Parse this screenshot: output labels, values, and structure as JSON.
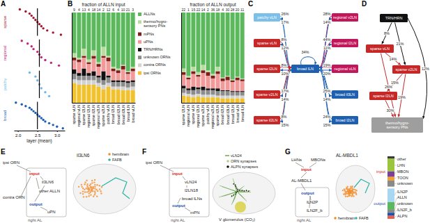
{
  "panel_labels": [
    "A",
    "B",
    "C",
    "D",
    "E",
    "F",
    "G"
  ],
  "chart_data": [
    {
      "type": "strip",
      "x_label": "layer (mean)",
      "xlim": [
        1.9,
        3.2
      ],
      "xticks": [
        {
          "value": 2,
          "label": "2.0"
        },
        {
          "value": 2.5,
          "label": "2.5"
        },
        {
          "value": 3,
          "label": "3.0"
        }
      ],
      "series": [
        {
          "name": "sparse",
          "color": "#a3162b",
          "values": [
            2.05,
            2.2,
            2.3,
            2.35,
            2.4,
            2.45,
            2.5,
            2.55,
            2.6,
            2.65,
            2.75,
            2.9,
            3.1
          ],
          "mean": 2.5
        },
        {
          "name": "regional",
          "color": "#c2267a",
          "values": [
            2.1,
            2.25,
            2.35,
            2.4,
            2.5,
            2.55,
            2.6,
            2.7,
            2.85,
            3.05
          ],
          "mean": 2.55
        },
        {
          "name": "patchy",
          "color": "#6fb7e8",
          "values": [
            2.3,
            2.45,
            2.5,
            2.55,
            2.6,
            2.7,
            2.8
          ],
          "mean": 2.55
        },
        {
          "name": "broad",
          "color": "#1f5fb0",
          "values": [
            1.95,
            2.1,
            2.2,
            2.3,
            2.35,
            2.4,
            2.45,
            2.5,
            2.55,
            2.6,
            2.65,
            2.7,
            2.8,
            2.9,
            3,
            3.15
          ],
          "mean": 2.5
        }
      ]
    },
    {
      "type": "bar",
      "stacked": true,
      "title": "fraction of ALLN input",
      "ylim": [
        0,
        1
      ],
      "tick_labels": "x",
      "legend": "right",
      "categories": [
        "sparse vLN",
        "regional vLN",
        "sparse l2LN",
        "regional l2LN",
        "sparse il2LN",
        "regional v2LN",
        "sparse v2LN",
        "patchy vLN",
        "broad l2LN",
        "broad il2LN",
        "broad il3LN",
        "broad lLN",
        "broad vLN"
      ],
      "counts": [
        9,
        4,
        13,
        4,
        18,
        14,
        2,
        12,
        6,
        4,
        10,
        21,
        3
      ],
      "series": [
        {
          "name": "ALLNs",
          "color": "#5cb85c",
          "values": [
            0.45,
            0.5,
            0.4,
            0.52,
            0.42,
            0.55,
            0.38,
            0.48,
            0.6,
            0.62,
            0.58,
            0.65,
            0.6
          ]
        },
        {
          "name": "thermo/hygro-sensory PNs",
          "color": "#b9dca0",
          "values": [
            0.05,
            0.02,
            0.08,
            0.03,
            0.06,
            0.02,
            0.1,
            0.02,
            0.02,
            0.02,
            0.01,
            0.01,
            0.02
          ]
        },
        {
          "name": "mPNs",
          "color": "#7f1d1d",
          "values": [
            0.03,
            0.03,
            0.02,
            0.02,
            0.03,
            0.03,
            0.02,
            0.04,
            0.03,
            0.03,
            0.04,
            0.02,
            0.03
          ]
        },
        {
          "name": "uPNs",
          "color": "#f29a9a",
          "values": [
            0.1,
            0.12,
            0.12,
            0.1,
            0.14,
            0.1,
            0.15,
            0.16,
            0.1,
            0.08,
            0.12,
            0.08,
            0.1
          ]
        },
        {
          "name": "TRN/HRNs",
          "color": "#111111",
          "values": [
            0.05,
            0.03,
            0.08,
            0.03,
            0.05,
            0.02,
            0.1,
            0.02,
            0.02,
            0.02,
            0.02,
            0.02,
            0.02
          ]
        },
        {
          "name": "unknown ORNs",
          "color": "#8c8c8c",
          "values": [
            0.06,
            0.05,
            0.05,
            0.05,
            0.05,
            0.06,
            0.05,
            0.06,
            0.05,
            0.05,
            0.05,
            0.05,
            0.05
          ]
        },
        {
          "name": "contra ORNs",
          "color": "#d2d2d2",
          "values": [
            0.04,
            0.05,
            0.05,
            0.05,
            0.05,
            0.04,
            0.05,
            0.04,
            0.03,
            0.03,
            0.04,
            0.03,
            0.04
          ]
        },
        {
          "name": "ipsi ORNs",
          "color": "#f2c12e",
          "values": [
            0.22,
            0.2,
            0.2,
            0.2,
            0.2,
            0.18,
            0.15,
            0.18,
            0.15,
            0.15,
            0.14,
            0.14,
            0.14
          ]
        }
      ]
    },
    {
      "type": "bar",
      "stacked": true,
      "title": "fraction of ALLN output",
      "ylim": [
        0,
        1
      ],
      "tick_labels": "x",
      "categories": [
        "sparse l2LN",
        "regional vLN",
        "sparse vLN",
        "regional l2LN",
        "sparse v2LN",
        "patchy vLN",
        "regional v2LN",
        "sparse il2LN",
        "broad il2LN",
        "broad il3LN",
        "broad l2LN",
        "broad vLN",
        "broad lLN"
      ],
      "counts": [
        22,
        1,
        15,
        22,
        14,
        2,
        36,
        18,
        4,
        30,
        28,
        20,
        11
      ],
      "series": [
        {
          "color": "#5cb85c",
          "values": [
            0.62,
            0.7,
            0.6,
            0.66,
            0.58,
            0.64,
            0.68,
            0.6,
            0.72,
            0.7,
            0.74,
            0.71,
            0.73
          ]
        },
        {
          "color": "#b9dca0",
          "values": [
            0.04,
            0.02,
            0.05,
            0.03,
            0.06,
            0.02,
            0.02,
            0.05,
            0.01,
            0.01,
            0.01,
            0.01,
            0.01
          ]
        },
        {
          "color": "#7f1d1d",
          "values": [
            0.03,
            0.02,
            0.03,
            0.02,
            0.03,
            0.04,
            0.03,
            0.03,
            0.03,
            0.04,
            0.02,
            0.03,
            0.02
          ]
        },
        {
          "color": "#f29a9a",
          "values": [
            0.12,
            0.1,
            0.14,
            0.12,
            0.15,
            0.14,
            0.11,
            0.16,
            0.1,
            0.11,
            0.1,
            0.12,
            0.11
          ]
        },
        {
          "color": "#111111",
          "values": [
            0.03,
            0.02,
            0.04,
            0.02,
            0.04,
            0.02,
            0.02,
            0.03,
            0.01,
            0.01,
            0.01,
            0.01,
            0.01
          ]
        },
        {
          "color": "#8c8c8c",
          "values": [
            0.05,
            0.04,
            0.05,
            0.05,
            0.05,
            0.05,
            0.05,
            0.05,
            0.05,
            0.05,
            0.04,
            0.04,
            0.04
          ]
        },
        {
          "color": "#d2d2d2",
          "values": [
            0.03,
            0.03,
            0.03,
            0.03,
            0.03,
            0.03,
            0.03,
            0.02,
            0.03,
            0.03,
            0.03,
            0.03,
            0.03
          ]
        },
        {
          "color": "#f2c12e",
          "values": [
            0.08,
            0.07,
            0.06,
            0.07,
            0.06,
            0.06,
            0.06,
            0.06,
            0.05,
            0.05,
            0.05,
            0.05,
            0.05
          ]
        }
      ]
    },
    {
      "type": "bar",
      "stacked": true,
      "ylim": [
        0,
        1
      ],
      "legend": "right",
      "categories": [
        "input",
        "output"
      ],
      "series": [
        {
          "name": "other",
          "color": "#3a3a3a",
          "values": [
            0.08,
            null
          ]
        },
        {
          "name": "LHN",
          "color": "#9bc53d",
          "values": [
            0.42,
            null
          ]
        },
        {
          "name": "MBON",
          "color": "#7e3f98",
          "values": [
            0.18,
            null
          ]
        },
        {
          "name": "TOON",
          "color": "#f0a030",
          "values": [
            0.12,
            null
          ]
        },
        {
          "name": "unknown",
          "color": "#8a8a8a",
          "values": [
            0.2,
            null
          ]
        },
        {
          "name": "lLN2P",
          "color": "#a9d6f0",
          "values": [
            null,
            0.45
          ]
        },
        {
          "name": "ALLN",
          "color": "#5cb85c",
          "values": [
            null,
            0.25
          ]
        },
        {
          "name": "unknown",
          "color": "#8a8a8a",
          "values": [
            null,
            0.1
          ]
        },
        {
          "name": "lLN2F_b",
          "color": "#1f4fa8",
          "values": [
            null,
            0.1
          ]
        },
        {
          "name": "ALPN",
          "color": "#e8604c",
          "values": [
            null,
            0.1
          ]
        }
      ]
    }
  ],
  "panel_c": {
    "nodes": [
      {
        "label": "broad lLN",
        "color": "#1f5fb0"
      },
      {
        "label": "patchy vLN",
        "color": "#7cc0ea"
      },
      {
        "label": "sparse vLN",
        "color": "#c62828"
      },
      {
        "label": "sparse l2LN",
        "color": "#c62828"
      },
      {
        "label": "sparse v2LN",
        "color": "#c62828"
      },
      {
        "label": "sparse il2LN",
        "color": "#c62828"
      },
      {
        "label": "regional v2LN",
        "color": "#c2185b"
      },
      {
        "label": "regional l2LN",
        "color": "#c2185b"
      },
      {
        "label": "regional vLN",
        "color": "#c2185b"
      },
      {
        "label": "broad il3LN",
        "color": "#1f5fb0"
      },
      {
        "label": "broad l2LN",
        "color": "#1f5fb0"
      }
    ],
    "edges": [
      {
        "from": 1,
        "to": 0,
        "label": "26%"
      },
      {
        "from": 0,
        "to": 1,
        "label": "17%"
      },
      {
        "from": 2,
        "to": 0,
        "label": "8%"
      },
      {
        "from": 0,
        "to": 2,
        "label": "12%"
      },
      {
        "from": 3,
        "to": 0,
        "label": "8%"
      },
      {
        "from": 0,
        "to": 3,
        "label": "10%"
      },
      {
        "from": 4,
        "to": 0,
        "label": "17%"
      },
      {
        "from": 0,
        "to": 4,
        "label": "14%"
      },
      {
        "from": 5,
        "to": 0,
        "label": "8%"
      },
      {
        "from": 0,
        "to": 5,
        "label": "15%"
      },
      {
        "from": 6,
        "to": 0,
        "label": "28%"
      },
      {
        "from": 0,
        "to": 6,
        "label": "14%"
      },
      {
        "from": 7,
        "to": 0,
        "label": "44%"
      },
      {
        "from": 0,
        "to": 7,
        "label": "11%"
      },
      {
        "from": 8,
        "to": 0,
        "label": "19%"
      },
      {
        "from": 0,
        "to": 8,
        "label": "20%"
      },
      {
        "from": 9,
        "to": 0,
        "label": "25%"
      },
      {
        "from": 0,
        "to": 9,
        "label": "14%"
      },
      {
        "from": 10,
        "to": 0,
        "label": "24%"
      },
      {
        "from": 0,
        "to": 10,
        "label": "15%"
      },
      {
        "from": 0,
        "to": 0,
        "label": "34%"
      }
    ]
  },
  "panel_d": {
    "nodes": [
      {
        "label": "TRN/HRN",
        "color": "#111111"
      },
      {
        "label": "sparse vLN",
        "color": "#c62828"
      },
      {
        "label": "sparse v2LN",
        "color": "#c62828"
      },
      {
        "label": "sparse l2LN",
        "color": "#c62828"
      },
      {
        "label": "thermo/hygro-sensory PNs",
        "color": "#9e9e9e"
      }
    ],
    "edges": [
      {
        "from": 0,
        "to": 1,
        "label": "8%"
      },
      {
        "from": 0,
        "to": 2,
        "label": "21%"
      },
      {
        "from": 0,
        "to": 4,
        "label": "12%"
      },
      {
        "from": 1,
        "to": 2,
        "label": "14%"
      },
      {
        "from": 2,
        "to": 3,
        "label": "15%"
      },
      {
        "from": 1,
        "to": 4,
        "label": "26%"
      },
      {
        "from": 2,
        "to": 4,
        "label": "19%"
      },
      {
        "from": 3,
        "to": 4,
        "label": "30%"
      }
    ]
  },
  "panel_e": {
    "schematic": [
      "ipsi ORN",
      "input",
      "il3LN6",
      "other ALLN",
      "contra ORN",
      "output",
      "uPN",
      "right AL"
    ],
    "render": {
      "title": "il3LN6",
      "legend": [
        {
          "name": "hemibrain",
          "color": "#f28c28",
          "marker": "circle"
        },
        {
          "name": "FAFB",
          "color": "#2bb3a3",
          "marker": "circle"
        }
      ]
    }
  },
  "panel_f": {
    "schematic": [
      "ipsi ORN",
      "input",
      "vLN24",
      "l2LN18",
      "broad lLNs",
      "output",
      "mPN",
      "right AL"
    ],
    "render": {
      "annotation": "V glomerulus (CO₂)",
      "legend": [
        {
          "name": "vLN24",
          "color": "#6aa84f",
          "marker": "line"
        },
        {
          "name": "ORN synapses",
          "color": "#a8d08d",
          "marker": "circle"
        },
        {
          "name": "ALPN synapses",
          "color": "#111111",
          "marker": "circle"
        }
      ]
    }
  },
  "panel_g": {
    "schematic": [
      "LHNs",
      "MBONs",
      "input",
      "AL-MBDL1",
      "output",
      "lLN2P",
      "lLN2F_b",
      "right AL"
    ],
    "render": {
      "title": "AL-MBDL1",
      "legend": [
        {
          "name": "hemibrain",
          "color": "#f28c28",
          "marker": "circle"
        },
        {
          "name": "FAFB",
          "color": "#2bb3a3",
          "marker": "circle"
        }
      ]
    }
  }
}
